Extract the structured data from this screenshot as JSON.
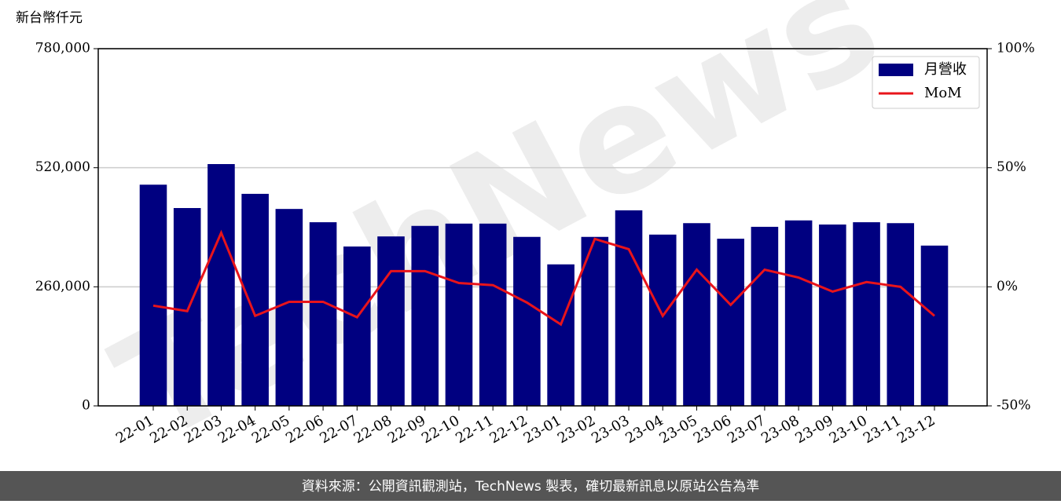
{
  "chart_data": {
    "type": "bar_line",
    "y_label": "新台幣仟元",
    "categories": [
      "22-01",
      "22-02",
      "22-03",
      "22-04",
      "22-05",
      "22-06",
      "22-07",
      "22-08",
      "22-09",
      "22-10",
      "22-11",
      "22-12",
      "23-01",
      "23-02",
      "23-03",
      "23-04",
      "23-05",
      "23-06",
      "23-07",
      "23-08",
      "23-09",
      "23-10",
      "23-11",
      "23-12"
    ],
    "series": [
      {
        "name": "月營收",
        "type": "bar",
        "color": "#000080",
        "values": [
          483000,
          432000,
          528000,
          463000,
          430000,
          401000,
          348000,
          370000,
          393000,
          398000,
          398000,
          369000,
          309000,
          369000,
          427000,
          374000,
          399000,
          365000,
          391000,
          405000,
          396000,
          401000,
          399000,
          350000
        ]
      },
      {
        "name": "MoM",
        "type": "line",
        "axis": "y2",
        "color": "#e8141b",
        "values": [
          -7.9,
          -10.2,
          22.7,
          -12.2,
          -6.3,
          -6.3,
          -12.8,
          6.6,
          6.6,
          1.6,
          0.7,
          -6.6,
          -15.8,
          20.1,
          15.8,
          -12.2,
          7.2,
          -7.6,
          7.2,
          3.9,
          -2.0,
          2.0,
          0.0,
          -12.2
        ]
      }
    ],
    "ylim": [
      0,
      780000
    ],
    "yticks": [
      0,
      {
        "value": 260000,
        "label": "260,000"
      },
      {
        "value": 520000,
        "label": "520,000"
      },
      {
        "value": 780000,
        "label": "780,000"
      }
    ],
    "y2lim": [
      -50,
      100
    ],
    "y2ticks": [
      {
        "value": -50,
        "label": "-50%"
      },
      {
        "value": 0,
        "label": "0%"
      },
      {
        "value": 50,
        "label": "50%"
      },
      {
        "value": 100,
        "label": "100%"
      }
    ],
    "grid": true,
    "legend": "upper right",
    "watermark": "TechNews",
    "footer": "資料來源：公開資訊觀測站，TechNews 製表，確切最新訊息以原站公告為準"
  }
}
